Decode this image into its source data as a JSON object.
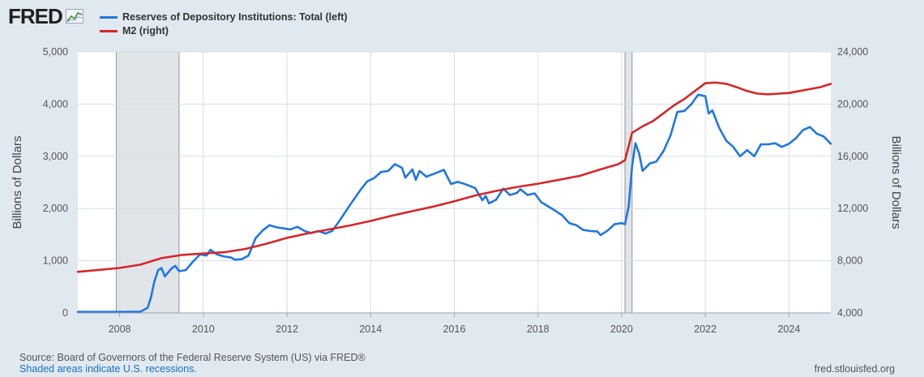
{
  "header": {
    "logo_text": "FRED",
    "logo_icon": "chart-line-icon"
  },
  "legend": [
    {
      "label": "Reserves of Depository Institutions: Total (left)",
      "color": "#1f77e0"
    },
    {
      "label": "M2 (right)",
      "color": "#d62728"
    }
  ],
  "footer": {
    "source": "Source: Board of Governors of the Federal Reserve System (US) via FRED®",
    "shaded_note": "Shaded areas indicate U.S. recessions.",
    "url": "fred.stlouisfed.org"
  },
  "chart_data": {
    "type": "line",
    "x_range": [
      2007.0,
      2025.0
    ],
    "x_ticks": [
      "2008",
      "2010",
      "2012",
      "2014",
      "2016",
      "2018",
      "2020",
      "2022",
      "2024"
    ],
    "left_axis": {
      "label": "Billions of Dollars",
      "range": [
        0,
        5000
      ],
      "ticks": [
        "0",
        "1,000",
        "2,000",
        "3,000",
        "4,000",
        "5,000"
      ]
    },
    "right_axis": {
      "label": "Billions of Dollars",
      "range": [
        4000,
        24000
      ],
      "ticks": [
        "4,000",
        "8,000",
        "12,000",
        "16,000",
        "20,000",
        "24,000"
      ]
    },
    "recessions": [
      [
        2007.92,
        2009.42
      ],
      [
        2020.08,
        2020.25
      ]
    ],
    "grid": true,
    "series": [
      {
        "name": "Reserves of Depository Institutions: Total (left)",
        "axis": "left",
        "color": "#1f77e0",
        "points": [
          [
            2007.0,
            20
          ],
          [
            2007.5,
            20
          ],
          [
            2008.0,
            20
          ],
          [
            2008.5,
            25
          ],
          [
            2008.67,
            100
          ],
          [
            2008.75,
            300
          ],
          [
            2008.83,
            600
          ],
          [
            2008.92,
            820
          ],
          [
            2009.0,
            860
          ],
          [
            2009.08,
            700
          ],
          [
            2009.25,
            860
          ],
          [
            2009.33,
            900
          ],
          [
            2009.42,
            800
          ],
          [
            2009.58,
            820
          ],
          [
            2009.75,
            980
          ],
          [
            2009.92,
            1120
          ],
          [
            2010.08,
            1100
          ],
          [
            2010.17,
            1210
          ],
          [
            2010.33,
            1120
          ],
          [
            2010.5,
            1080
          ],
          [
            2010.67,
            1060
          ],
          [
            2010.75,
            1020
          ],
          [
            2010.92,
            1030
          ],
          [
            2011.08,
            1100
          ],
          [
            2011.25,
            1430
          ],
          [
            2011.42,
            1580
          ],
          [
            2011.58,
            1680
          ],
          [
            2011.75,
            1640
          ],
          [
            2011.92,
            1620
          ],
          [
            2012.08,
            1600
          ],
          [
            2012.25,
            1650
          ],
          [
            2012.42,
            1570
          ],
          [
            2012.58,
            1530
          ],
          [
            2012.75,
            1570
          ],
          [
            2012.92,
            1520
          ],
          [
            2013.08,
            1570
          ],
          [
            2013.25,
            1760
          ],
          [
            2013.5,
            2060
          ],
          [
            2013.75,
            2350
          ],
          [
            2013.92,
            2520
          ],
          [
            2014.08,
            2580
          ],
          [
            2014.25,
            2700
          ],
          [
            2014.42,
            2720
          ],
          [
            2014.58,
            2850
          ],
          [
            2014.75,
            2780
          ],
          [
            2014.83,
            2590
          ],
          [
            2015.0,
            2750
          ],
          [
            2015.08,
            2550
          ],
          [
            2015.17,
            2720
          ],
          [
            2015.33,
            2610
          ],
          [
            2015.5,
            2660
          ],
          [
            2015.75,
            2740
          ],
          [
            2015.92,
            2470
          ],
          [
            2016.08,
            2510
          ],
          [
            2016.25,
            2470
          ],
          [
            2016.5,
            2390
          ],
          [
            2016.67,
            2160
          ],
          [
            2016.75,
            2240
          ],
          [
            2016.83,
            2100
          ],
          [
            2017.0,
            2170
          ],
          [
            2017.17,
            2380
          ],
          [
            2017.33,
            2260
          ],
          [
            2017.5,
            2300
          ],
          [
            2017.58,
            2370
          ],
          [
            2017.75,
            2260
          ],
          [
            2017.92,
            2290
          ],
          [
            2018.08,
            2120
          ],
          [
            2018.33,
            2000
          ],
          [
            2018.58,
            1870
          ],
          [
            2018.75,
            1720
          ],
          [
            2018.92,
            1680
          ],
          [
            2019.08,
            1590
          ],
          [
            2019.25,
            1570
          ],
          [
            2019.42,
            1560
          ],
          [
            2019.5,
            1490
          ],
          [
            2019.67,
            1580
          ],
          [
            2019.83,
            1700
          ],
          [
            2020.0,
            1720
          ],
          [
            2020.08,
            1700
          ],
          [
            2020.17,
            2050
          ],
          [
            2020.25,
            2800
          ],
          [
            2020.33,
            3250
          ],
          [
            2020.42,
            3050
          ],
          [
            2020.5,
            2720
          ],
          [
            2020.67,
            2860
          ],
          [
            2020.83,
            2900
          ],
          [
            2021.0,
            3100
          ],
          [
            2021.17,
            3400
          ],
          [
            2021.33,
            3850
          ],
          [
            2021.5,
            3870
          ],
          [
            2021.67,
            4000
          ],
          [
            2021.83,
            4180
          ],
          [
            2022.0,
            4150
          ],
          [
            2022.08,
            3820
          ],
          [
            2022.17,
            3880
          ],
          [
            2022.33,
            3550
          ],
          [
            2022.5,
            3300
          ],
          [
            2022.67,
            3180
          ],
          [
            2022.83,
            3000
          ],
          [
            2023.0,
            3120
          ],
          [
            2023.17,
            3000
          ],
          [
            2023.33,
            3230
          ],
          [
            2023.5,
            3230
          ],
          [
            2023.67,
            3250
          ],
          [
            2023.83,
            3180
          ],
          [
            2024.0,
            3240
          ],
          [
            2024.17,
            3350
          ],
          [
            2024.33,
            3500
          ],
          [
            2024.5,
            3560
          ],
          [
            2024.67,
            3430
          ],
          [
            2024.83,
            3380
          ],
          [
            2025.0,
            3240
          ]
        ]
      },
      {
        "name": "M2 (right)",
        "axis": "right",
        "color": "#d62728",
        "points": [
          [
            2007.0,
            7150
          ],
          [
            2007.5,
            7300
          ],
          [
            2008.0,
            7450
          ],
          [
            2008.5,
            7700
          ],
          [
            2009.0,
            8200
          ],
          [
            2009.5,
            8450
          ],
          [
            2010.0,
            8550
          ],
          [
            2010.5,
            8650
          ],
          [
            2011.0,
            8900
          ],
          [
            2011.5,
            9300
          ],
          [
            2012.0,
            9750
          ],
          [
            2012.5,
            10100
          ],
          [
            2013.0,
            10400
          ],
          [
            2013.5,
            10700
          ],
          [
            2014.0,
            11050
          ],
          [
            2014.5,
            11450
          ],
          [
            2015.0,
            11800
          ],
          [
            2015.5,
            12150
          ],
          [
            2016.0,
            12550
          ],
          [
            2016.5,
            13000
          ],
          [
            2017.0,
            13350
          ],
          [
            2017.5,
            13650
          ],
          [
            2018.0,
            13900
          ],
          [
            2018.5,
            14200
          ],
          [
            2019.0,
            14500
          ],
          [
            2019.5,
            15000
          ],
          [
            2019.92,
            15400
          ],
          [
            2020.08,
            15700
          ],
          [
            2020.17,
            16800
          ],
          [
            2020.25,
            17800
          ],
          [
            2020.5,
            18300
          ],
          [
            2020.75,
            18700
          ],
          [
            2021.0,
            19300
          ],
          [
            2021.25,
            19900
          ],
          [
            2021.5,
            20400
          ],
          [
            2021.75,
            21000
          ],
          [
            2022.0,
            21600
          ],
          [
            2022.25,
            21650
          ],
          [
            2022.5,
            21550
          ],
          [
            2022.75,
            21300
          ],
          [
            2023.0,
            21000
          ],
          [
            2023.25,
            20800
          ],
          [
            2023.5,
            20750
          ],
          [
            2023.75,
            20800
          ],
          [
            2024.0,
            20850
          ],
          [
            2024.25,
            21000
          ],
          [
            2024.5,
            21150
          ],
          [
            2024.75,
            21300
          ],
          [
            2025.0,
            21550
          ]
        ]
      }
    ]
  }
}
